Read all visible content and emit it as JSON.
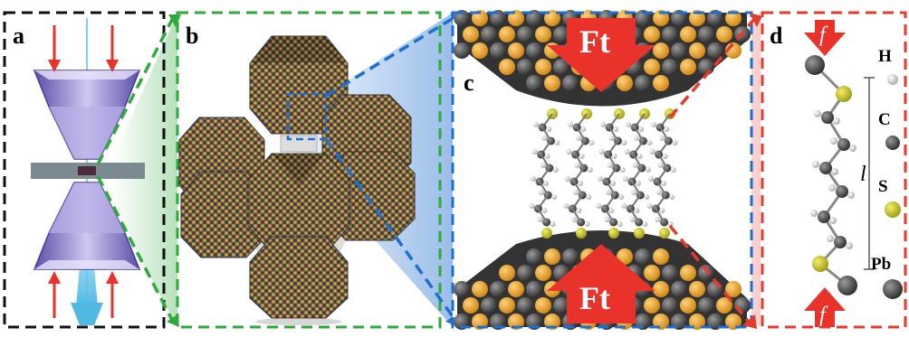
{
  "panels": {
    "a": {
      "label": "a",
      "frame_color": "#111111"
    },
    "b": {
      "label": "b",
      "frame_color": "#2eaa3a"
    },
    "c": {
      "label": "c",
      "frame_color": "#1f6fd0"
    },
    "d": {
      "label": "d",
      "frame_color": "#e53a2e"
    }
  },
  "force_labels": {
    "top": "Ft",
    "bottom": "Ft",
    "molecule_top": "f",
    "molecule_bottom": "f"
  },
  "length_label": "l",
  "legend": [
    {
      "label": "H",
      "color": "#e8e8e8"
    },
    {
      "label": "C",
      "color": "#555555"
    },
    {
      "label": "S",
      "color": "#c8c21a"
    },
    {
      "label": "Pb",
      "color": "#3a3a3a"
    }
  ],
  "colors": {
    "arrow_red": "#e8322a",
    "gold_atom": "#e39a1c",
    "dark_atom": "#3b3b3b",
    "sulfur": "#c8c21a",
    "anvil_purple": "#8a7dc8",
    "beam_blue": "#5fc4e6"
  },
  "icons": [
    "diamond-anvil-cell-icon",
    "nanocrystal-superlattice-icon",
    "force-arrow-icon"
  ]
}
